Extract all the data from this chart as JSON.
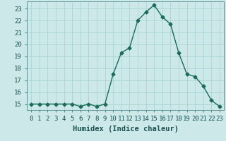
{
  "x": [
    0,
    1,
    2,
    3,
    4,
    5,
    6,
    7,
    8,
    9,
    10,
    11,
    12,
    13,
    14,
    15,
    16,
    17,
    18,
    19,
    20,
    21,
    22,
    23
  ],
  "y": [
    15.0,
    15.0,
    15.0,
    15.0,
    15.0,
    15.0,
    14.8,
    15.0,
    14.8,
    15.0,
    17.5,
    19.3,
    19.7,
    22.0,
    22.7,
    23.3,
    22.3,
    21.7,
    19.3,
    17.5,
    17.3,
    16.5,
    15.3,
    14.8
  ],
  "line_color": "#1a6b5a",
  "bg_color": "#cce8e8",
  "grid_color": "#aad4d4",
  "xlabel": "Humidex (Indice chaleur)",
  "ylim": [
    14.5,
    23.6
  ],
  "yticks": [
    15,
    16,
    17,
    18,
    19,
    20,
    21,
    22,
    23
  ],
  "xticks": [
    0,
    1,
    2,
    3,
    4,
    5,
    6,
    7,
    8,
    9,
    10,
    11,
    12,
    13,
    14,
    15,
    16,
    17,
    18,
    19,
    20,
    21,
    22,
    23
  ],
  "marker": "D",
  "marker_size": 2.5,
  "linewidth": 1.0,
  "xlabel_fontsize": 7.5,
  "tick_fontsize": 6.5
}
